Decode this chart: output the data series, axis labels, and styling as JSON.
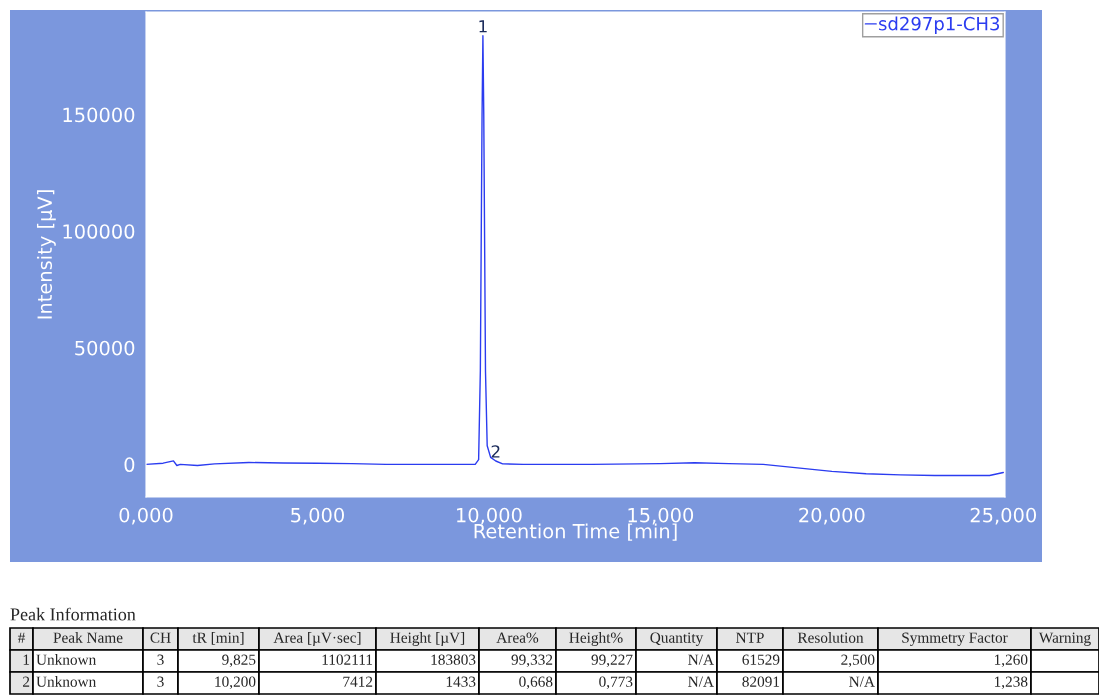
{
  "chart_data": {
    "type": "line",
    "xlabel": "Retention Time [min]",
    "ylabel": "Intensity [µV]",
    "xlim": [
      0,
      25.05
    ],
    "ylim": [
      -14000,
      194000
    ],
    "xticks": [
      {
        "value": 0,
        "label": "0,000"
      },
      {
        "value": 5,
        "label": "5,000"
      },
      {
        "value": 10,
        "label": "10,000"
      },
      {
        "value": 15,
        "label": "15,000"
      },
      {
        "value": 20,
        "label": "20,000"
      },
      {
        "value": 25,
        "label": "25,000"
      }
    ],
    "yticks": [
      0,
      50000,
      100000,
      150000
    ],
    "grid": false,
    "legend": "top right",
    "marker": "none",
    "line_style": "solid",
    "series": [
      {
        "name": "sd297p1-CH3",
        "color": "#2b3cf0",
        "x": [
          0,
          0.5,
          0.8,
          0.9,
          1.0,
          1.5,
          2,
          3,
          4,
          5,
          6,
          7,
          8,
          9,
          9.6,
          9.7,
          9.75,
          9.8,
          9.825,
          9.85,
          9.9,
          9.95,
          10.05,
          10.2,
          10.4,
          11,
          13,
          15,
          16,
          17,
          18,
          19,
          20,
          21,
          22,
          23,
          24,
          24.6,
          25
        ],
        "values": [
          0,
          500,
          1500,
          -500,
          0,
          -500,
          200,
          800,
          600,
          500,
          300,
          0,
          0,
          0,
          0,
          2000,
          40000,
          150000,
          183803,
          150000,
          40000,
          8000,
          3000,
          1433,
          200,
          0,
          0,
          300,
          700,
          300,
          0,
          -1500,
          -3000,
          -4000,
          -4500,
          -4800,
          -4800,
          -4800,
          -3500
        ]
      }
    ],
    "annotations": [
      {
        "text": "1",
        "x": 9.825,
        "y": 183803
      },
      {
        "text": "2",
        "x": 10.2,
        "y": 1433
      },
      "Peak Information",
      "#",
      "Peak Name",
      "CH",
      "tR [min]",
      "Area [µV·sec]",
      "Height [µV]",
      "Area%",
      "Height%",
      "Quantity",
      "NTP",
      "Resolution",
      "Symmetry Factor",
      "Warning",
      "1",
      "Unknown",
      "3",
      "9,825",
      "1102111",
      "183803",
      "99,332",
      "99,227",
      "N/A",
      "61529",
      "2,500",
      "1,260",
      null,
      "2",
      "Unknown",
      "3",
      "10,200",
      "7412",
      "1433",
      "0,668",
      "0,773",
      "N/A",
      "82091",
      "N/A",
      "1,238",
      null
    ]
  }
}
